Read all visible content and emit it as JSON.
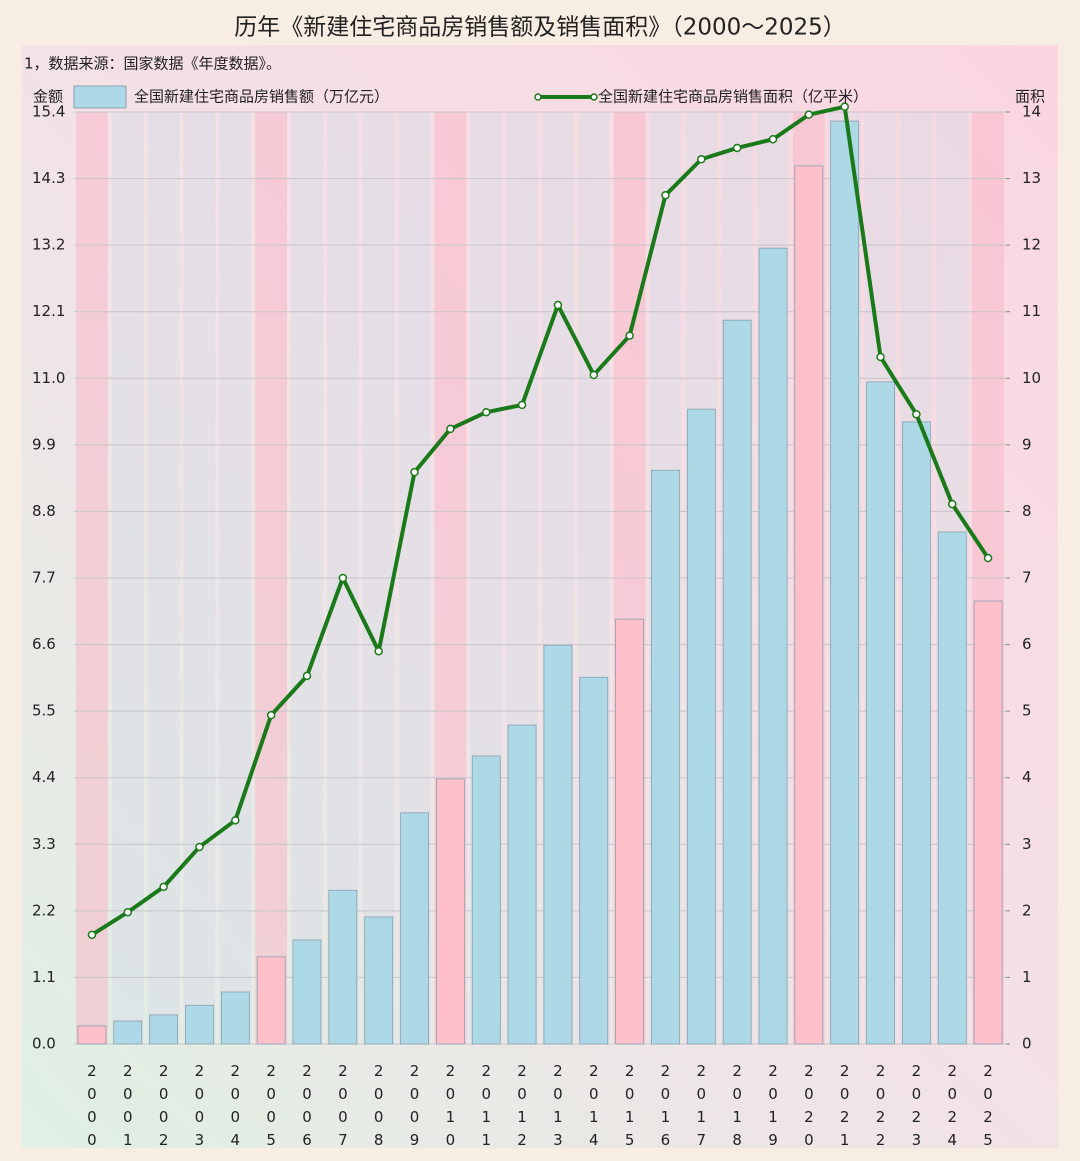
{
  "chart_data": {
    "type": "bar",
    "title": "历年《新建住宅商品房销售额及销售面积》（2000～2025）",
    "subtitle": "1，数据来源：国家数据《年度数据》。",
    "y_label": "金额",
    "y2_label": "面积",
    "categories": [
      "2000",
      "2001",
      "2002",
      "2003",
      "2004",
      "2005",
      "2006",
      "2007",
      "2008",
      "2009",
      "2010",
      "2011",
      "2012",
      "2013",
      "2014",
      "2015",
      "2016",
      "2017",
      "2018",
      "2019",
      "2020",
      "2021",
      "2022",
      "2023",
      "2024",
      "2025"
    ],
    "series": [
      {
        "name": "全国新建住宅商品房销售额（万亿元）",
        "type": "bar",
        "color": "#add8e6",
        "colors": [
          "#ffc0cb",
          "#add8e6",
          "#add8e6",
          "#add8e6",
          "#add8e6",
          "#ffc0cb",
          "#add8e6",
          "#add8e6",
          "#add8e6",
          "#add8e6",
          "#ffc0cb",
          "#add8e6",
          "#add8e6",
          "#add8e6",
          "#add8e6",
          "#ffc0cb",
          "#add8e6",
          "#add8e6",
          "#add8e6",
          "#add8e6",
          "#ffc0cb",
          "#add8e6",
          "#add8e6",
          "#add8e6",
          "#add8e6",
          "#ffc0cb"
        ],
        "values": [
          0.3,
          0.38,
          0.48,
          0.64,
          0.86,
          1.44,
          1.72,
          2.54,
          2.1,
          3.82,
          4.38,
          4.76,
          5.27,
          6.59,
          6.06,
          7.02,
          9.48,
          10.49,
          11.96,
          13.15,
          14.51,
          15.25,
          10.94,
          10.28,
          8.46,
          7.32
        ]
      },
      {
        "name": "全国新建住宅商品房销售面积（亿平米）",
        "type": "line",
        "axis": "y2",
        "color": "#1a7a1a",
        "values": [
          1.64,
          1.98,
          2.36,
          2.96,
          3.36,
          4.94,
          5.53,
          7.0,
          5.9,
          8.59,
          9.24,
          9.49,
          9.6,
          11.1,
          10.05,
          10.64,
          12.75,
          13.29,
          13.46,
          13.59,
          13.96,
          14.08,
          10.32,
          9.46,
          8.11,
          7.3
        ]
      }
    ],
    "ylim": [
      0,
      15.4
    ],
    "yticks": [
      {
        "value": 0,
        "label": "0.0"
      },
      1.1,
      2.2,
      3.3,
      4.4,
      5.5,
      6.6,
      7.7,
      8.8,
      9.9,
      {
        "value": 11,
        "label": "11.0"
      },
      12.1,
      13.2,
      14.3,
      15.4
    ],
    "y2lim": [
      0,
      14
    ],
    "y2ticks": [
      0,
      1,
      2,
      3,
      4,
      5,
      6,
      7,
      8,
      9,
      10,
      11,
      12,
      13,
      14
    ],
    "grid": true
  }
}
